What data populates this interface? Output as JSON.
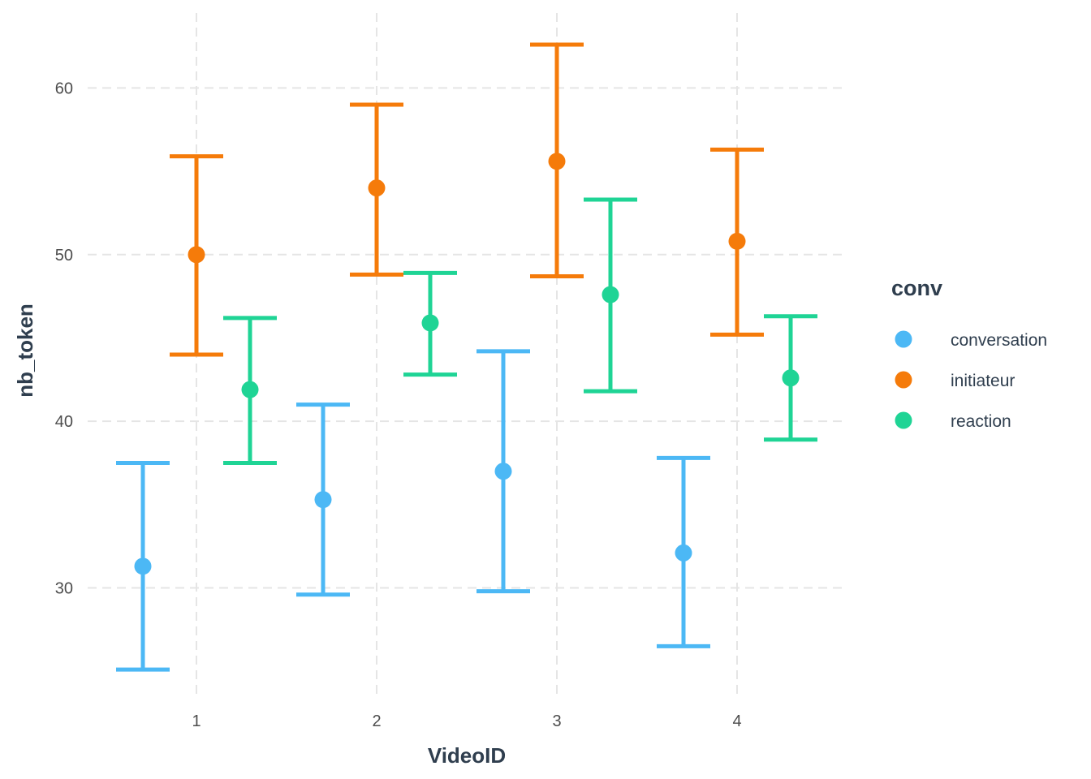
{
  "chart_data": {
    "type": "scatter",
    "subtype": "errorbar",
    "xlabel": "VideoID",
    "ylabel": "nb_token",
    "categories": [
      "1",
      "2",
      "3",
      "4"
    ],
    "ylim": [
      23.5,
      64.5
    ],
    "yticks": [
      30,
      40,
      50,
      60
    ],
    "grid": true,
    "legend": {
      "title": "conv",
      "position": "right"
    },
    "series": [
      {
        "name": "conversation",
        "color": "#4cb8f5",
        "mean": [
          31.3,
          35.3,
          37.0,
          32.1
        ],
        "lower": [
          25.1,
          29.6,
          29.8,
          26.5
        ],
        "upper": [
          37.5,
          41.0,
          44.2,
          37.8
        ]
      },
      {
        "name": "initiateur",
        "color": "#f57b0a",
        "mean": [
          50.0,
          54.0,
          55.6,
          50.8
        ],
        "lower": [
          44.0,
          48.8,
          48.7,
          45.2
        ],
        "upper": [
          55.9,
          59.0,
          62.6,
          56.3
        ]
      },
      {
        "name": "reaction",
        "color": "#1fd495",
        "mean": [
          41.9,
          45.9,
          47.6,
          42.6
        ],
        "lower": [
          37.5,
          42.8,
          41.8,
          38.9
        ],
        "upper": [
          46.2,
          48.9,
          53.3,
          46.3
        ]
      }
    ]
  }
}
